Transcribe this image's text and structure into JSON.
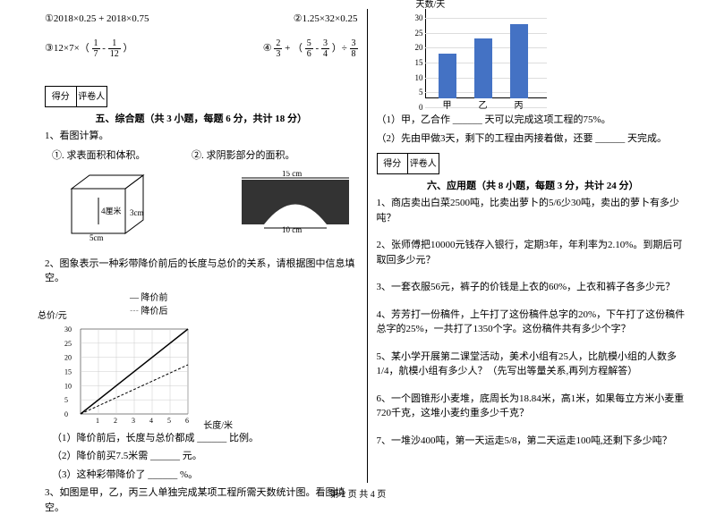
{
  "left": {
    "eq1": "①2018×0.25 + 2018×0.75",
    "eq2": "②1.25×32×0.25",
    "eq3_pre": "③12×7×（",
    "eq3_f1": {
      "n": "1",
      "d": "7"
    },
    "eq3_mid": " - ",
    "eq3_f2": {
      "n": "1",
      "d": "12"
    },
    "eq3_post": "）",
    "eq4_pre": "④",
    "eq4_f1": {
      "n": "2",
      "d": "3"
    },
    "eq4_mid1": " + （",
    "eq4_f2": {
      "n": "5",
      "d": "6"
    },
    "eq4_mid2": " - ",
    "eq4_f3": {
      "n": "3",
      "d": "4"
    },
    "eq4_mid3": "）÷",
    "eq4_f4": {
      "n": "3",
      "d": "8"
    },
    "score1": "得分",
    "score2": "评卷人",
    "sec5_title": "五、综合题（共 3 小题，每题 6 分，共计 18 分）",
    "q1": "1、看图计算。",
    "q1a": "①. 求表面积和体积。",
    "q1b": "②. 求阴影部分的面积。",
    "box": {
      "h": "4厘米",
      "w": "5cm",
      "d": "3cm"
    },
    "arch": {
      "top": "15 cm",
      "bottom": "10 cm"
    },
    "q2": "2、图象表示一种彩带降价前后的长度与总价的关系，请根据图中信息填空。",
    "legend1": "— 降价前",
    "legend2": "┄ 降价后",
    "chart2": {
      "ylabel": "总价/元",
      "xlabel": "长度/米",
      "ymax": 30,
      "yticks": [
        0,
        5,
        10,
        15,
        20,
        25,
        30
      ],
      "xmax": 6,
      "xticks": [
        1,
        2,
        3,
        4,
        5,
        6
      ]
    },
    "q2_1": "（1）降价前后，长度与总价都成 ______ 比例。",
    "q2_2": "（2）降价前买7.5米需 ______ 元。",
    "q2_3": "（3）这种彩带降价了 ______ %。",
    "q3": "3、如图是甲，乙，丙三人单独完成某项工程所需天数统计图。看图填空。"
  },
  "right": {
    "barchart": {
      "ytitle": "天数/天",
      "yticks": [
        0,
        5,
        10,
        15,
        20,
        25,
        30
      ],
      "cats": [
        "甲",
        "乙",
        "丙"
      ],
      "values": [
        15,
        20,
        25
      ],
      "ymax": 30,
      "color": "#4472c4"
    },
    "bq1": "（1）甲，乙合作 ______ 天可以完成这项工程的75%。",
    "bq2": "（2）先由甲做3天，剩下的工程由丙接着做，还要 ______ 天完成。",
    "score1": "得分",
    "score2": "评卷人",
    "sec6_title": "六、应用题（共 8 小题，每题 3 分，共计 24 分）",
    "a1": "1、商店卖出白菜2500吨，比卖出萝卜的5/6少30吨，卖出的萝卜有多少吨？",
    "a2": "2、张师傅把10000元钱存入银行，定期3年，年利率为2.10%。到期后可取回多少元？",
    "a3": "3、一套衣服56元，裤子的价钱是上衣的60%，上衣和裤子各多少元？",
    "a4": "4、芳芳打一份稿件，上午打了这份稿件总字的20%，下午打了这份稿件总字的25%，一共打了1350个字。这份稿件共有多少个字？",
    "a5": "5、某小学开展第二课堂活动，美术小组有25人，比航模小组的人数多1/4，航模小组有多少人？（先写出等量关系,再列方程解答）",
    "a6": "6、一个圆锥形小麦堆，底周长为18.84米，高1米，如果每立方米小麦重720千克，这堆小麦约重多少千克？",
    "a7": "7、一堆沙400吨，第一天运走5/8，第二天运走100吨,还剩下多少吨？"
  },
  "footer": "第 2 页 共 4 页"
}
